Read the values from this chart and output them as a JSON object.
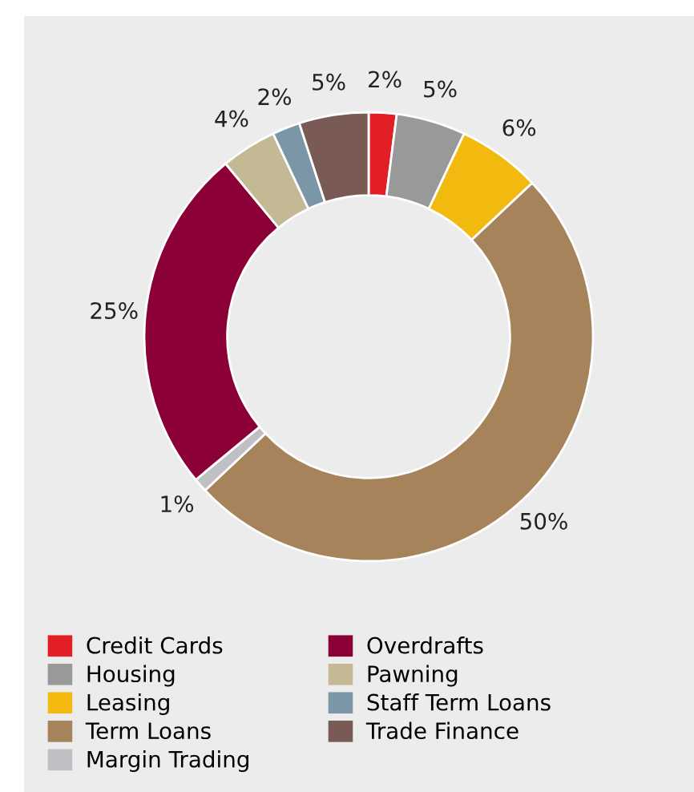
{
  "chart_data": {
    "type": "donut",
    "categories": [
      "Credit Cards",
      "Housing",
      "Leasing",
      "Term Loans",
      "Margin Trading",
      "Overdrafts",
      "Pawning",
      "Staff Term Loans",
      "Trade Finance"
    ],
    "values": [
      2,
      5,
      6,
      50,
      1,
      25,
      4,
      2,
      5
    ],
    "colors": [
      "#e31f26",
      "#999999",
      "#f2b90f",
      "#a6835a",
      "#c0bfc4",
      "#8b0037",
      "#c4b995",
      "#7b97a7",
      "#7a5a55"
    ],
    "value_labels": [
      "2%",
      "5%",
      "6%",
      "50%",
      "1%",
      "25%",
      "4%",
      "2%",
      "5%"
    ],
    "legend": "bottom"
  }
}
